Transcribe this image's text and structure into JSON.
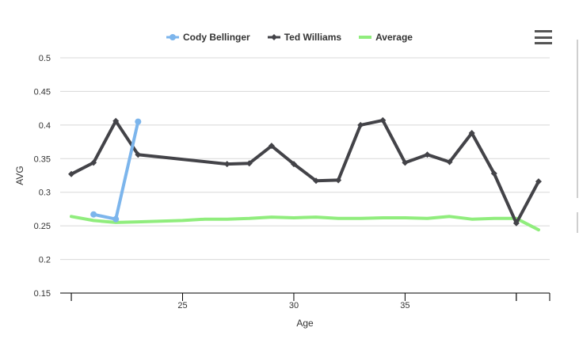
{
  "chart_data": {
    "type": "line",
    "xlabel": "Age",
    "ylabel": "AVG",
    "xlim": [
      19.5,
      41.5
    ],
    "ylim": [
      0.15,
      0.5
    ],
    "xticks": [
      25,
      30,
      35
    ],
    "yticks": [
      0.15,
      0.2,
      0.25,
      0.3,
      0.35,
      0.4,
      0.45,
      0.5
    ],
    "ytick_labels": [
      "0.15",
      "0.2",
      "0.25",
      "0.3",
      "0.35",
      "0.4",
      "0.45",
      "0.5"
    ],
    "series": [
      {
        "name": "Cody Bellinger",
        "color": "#7cb5ec",
        "marker": "circle",
        "points": [
          [
            21,
            0.267
          ],
          [
            22,
            0.26
          ],
          [
            23,
            0.405
          ]
        ]
      },
      {
        "name": "Ted Williams",
        "color": "#434348",
        "marker": "diamond",
        "points": [
          [
            20,
            0.327
          ],
          [
            21,
            0.344
          ],
          [
            22,
            0.406
          ],
          [
            23,
            0.356
          ],
          [
            27,
            0.342
          ],
          [
            28,
            0.343
          ],
          [
            29,
            0.369
          ],
          [
            30,
            0.342
          ],
          [
            31,
            0.317
          ],
          [
            32,
            0.318
          ],
          [
            33,
            0.4
          ],
          [
            34,
            0.407
          ],
          [
            35,
            0.344
          ],
          [
            36,
            0.356
          ],
          [
            37,
            0.345
          ],
          [
            38,
            0.388
          ],
          [
            39,
            0.328
          ],
          [
            40,
            0.254
          ],
          [
            41,
            0.316
          ]
        ]
      },
      {
        "name": "Average",
        "color": "#90ed7d",
        "marker": "none",
        "points": [
          [
            20,
            0.264
          ],
          [
            21,
            0.258
          ],
          [
            22,
            0.255
          ],
          [
            23,
            0.256
          ],
          [
            24,
            0.257
          ],
          [
            25,
            0.258
          ],
          [
            26,
            0.26
          ],
          [
            27,
            0.26
          ],
          [
            28,
            0.261
          ],
          [
            29,
            0.263
          ],
          [
            30,
            0.262
          ],
          [
            31,
            0.263
          ],
          [
            32,
            0.261
          ],
          [
            33,
            0.261
          ],
          [
            34,
            0.262
          ],
          [
            35,
            0.262
          ],
          [
            36,
            0.261
          ],
          [
            37,
            0.264
          ],
          [
            38,
            0.26
          ],
          [
            39,
            0.261
          ],
          [
            40,
            0.261
          ],
          [
            41,
            0.244
          ]
        ]
      }
    ]
  },
  "legend": {
    "items": [
      "Cody Bellinger",
      "Ted Williams",
      "Average"
    ]
  },
  "menu": {
    "icon": "hamburger-menu-icon"
  }
}
